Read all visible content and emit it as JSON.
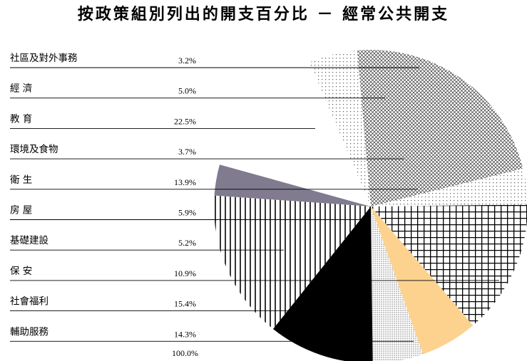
{
  "chart_data": {
    "type": "pie",
    "title": "按政策組別列出的開支百分比 － 經常公共開支",
    "categories": [
      "社區及對外事務",
      "經 濟",
      "教 育",
      "環境及食物",
      "衛 生",
      "房 屋",
      "基礎建設",
      "保 安",
      "社會福利",
      "輔助服務"
    ],
    "values": [
      3.2,
      5.0,
      22.5,
      3.7,
      13.9,
      5.9,
      5.2,
      10.9,
      15.4,
      14.3
    ],
    "value_labels": [
      "3.2%",
      "5.0%",
      "22.5%",
      "3.7%",
      "13.9%",
      "5.9%",
      "5.2%",
      "10.9%",
      "15.4%",
      "14.3%"
    ],
    "total_label": "100.0%",
    "legend": "left",
    "fills": [
      "#817b8f",
      "dots-sparse",
      "diag-hatch",
      "dots-sparse",
      "grid-large",
      "#fdd28f",
      "dots-dense",
      "#000000",
      "vertical-hatch",
      "#ffffff"
    ]
  }
}
